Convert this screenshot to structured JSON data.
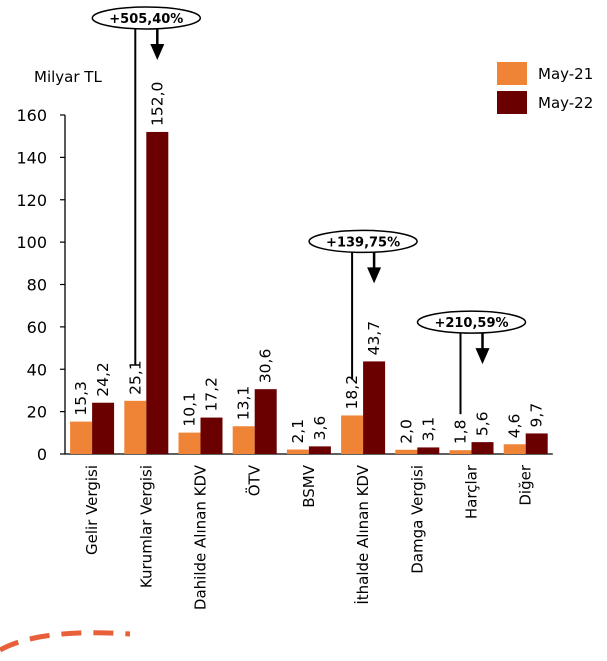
{
  "chart_data": {
    "type": "bar",
    "ylabel": "Milyar TL",
    "ylim": [
      0,
      160
    ],
    "yticks": [
      0,
      20,
      40,
      60,
      80,
      100,
      120,
      140,
      160
    ],
    "categories": [
      "Gelir Vergisi",
      "Kurumlar Vergisi",
      "Dahilde Alınan KDV",
      "ÖTV",
      "BSMV",
      "İthalde Alınan KDV",
      "Damga Vergisi",
      "Harçlar",
      "Diğer"
    ],
    "series": [
      {
        "name": "May-21",
        "color": "#F08436",
        "values": [
          15.3,
          25.1,
          10.1,
          13.1,
          2.1,
          18.2,
          2.0,
          1.8,
          4.6
        ],
        "labels": [
          "15,3",
          "25,1",
          "10,1",
          "13,1",
          "2,1",
          "18,2",
          "2,0",
          "1,8",
          "4,6"
        ]
      },
      {
        "name": "May-22",
        "color": "#6B0000",
        "values": [
          24.2,
          152.0,
          17.2,
          30.6,
          3.6,
          43.7,
          3.1,
          5.6,
          9.7
        ],
        "labels": [
          "24,2",
          "152,0",
          "17,2",
          "30,6",
          "3,6",
          "43,7",
          "3,1",
          "5,6",
          "9,7"
        ]
      }
    ],
    "legend_position": "top-right",
    "grid": false,
    "annotations": [
      {
        "category_index": 1,
        "text": "+505,40%"
      },
      {
        "category_index": 5,
        "text": "+139,75%"
      },
      {
        "category_index": 7,
        "text": "+210,59%"
      }
    ]
  }
}
